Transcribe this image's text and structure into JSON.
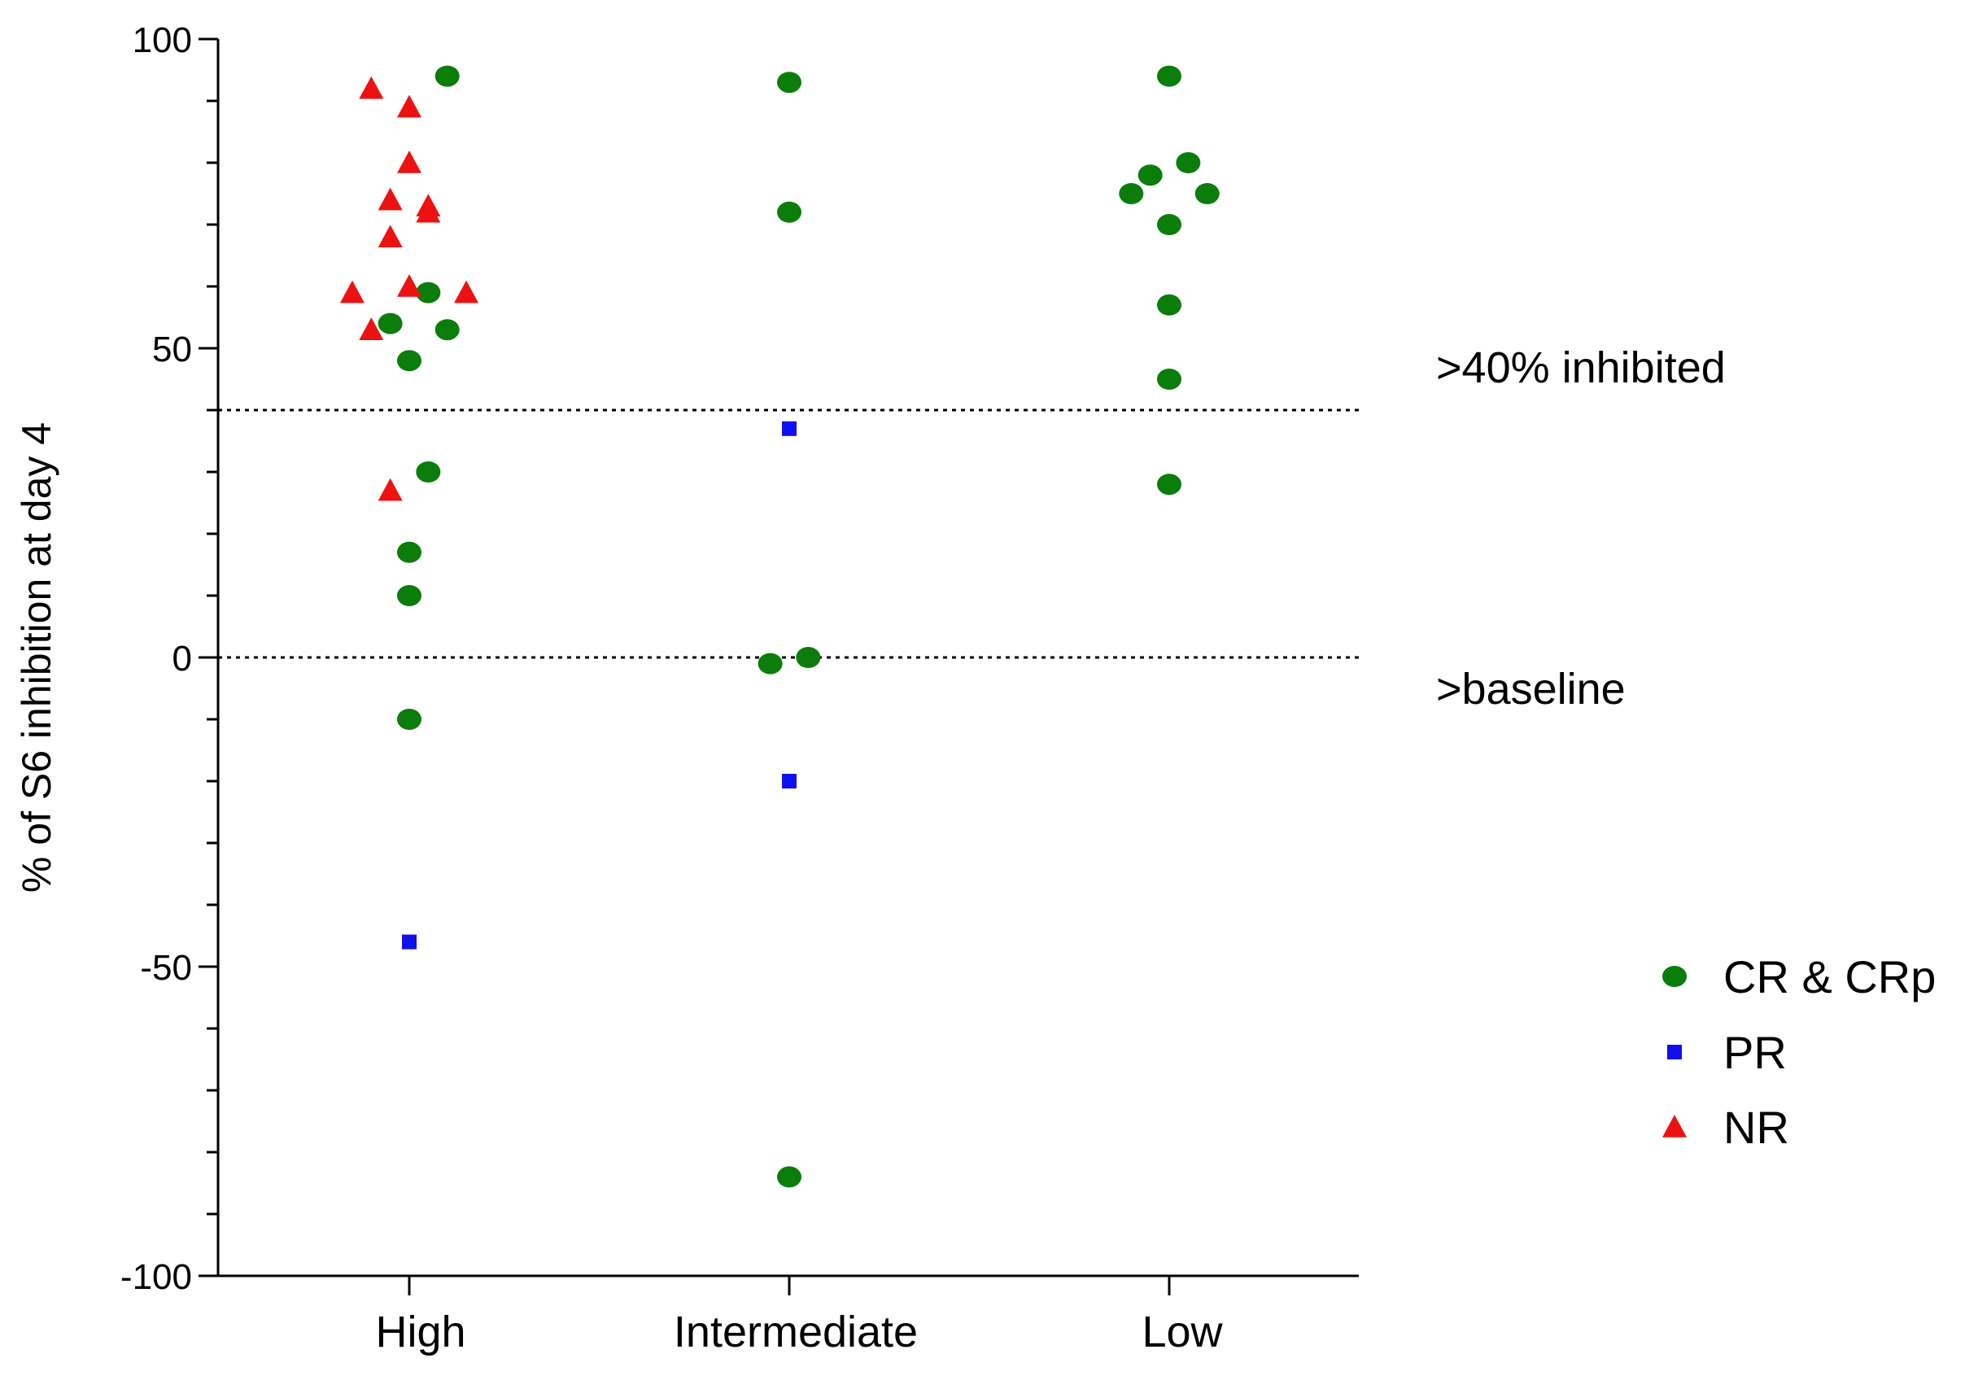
{
  "chart_data": {
    "type": "scatter",
    "title": "",
    "xlabel": "",
    "ylabel": "% of S6 inhibition at day 4",
    "ylim": [
      -100,
      100
    ],
    "yticks": [
      100,
      50,
      0,
      -50,
      -100
    ],
    "yminor_step": 10,
    "categories": [
      "High",
      "Intermediate",
      "Low"
    ],
    "grid": false,
    "legend_position": "right",
    "reference_lines": [
      {
        "y": 40,
        "label": ">40% inhibited",
        "style": "dotted"
      },
      {
        "y": 0,
        "label": ">baseline",
        "style": "dotted"
      }
    ],
    "series": [
      {
        "name": "CR & CRp",
        "marker": "circle",
        "color": "#0a7d0a",
        "points": [
          {
            "category": "High",
            "jitter": 0.1,
            "y": 94
          },
          {
            "category": "High",
            "jitter": 0.05,
            "y": 59
          },
          {
            "category": "High",
            "jitter": -0.05,
            "y": 54
          },
          {
            "category": "High",
            "jitter": 0.1,
            "y": 53
          },
          {
            "category": "High",
            "jitter": 0.0,
            "y": 48
          },
          {
            "category": "High",
            "jitter": 0.05,
            "y": 30
          },
          {
            "category": "High",
            "jitter": 0.0,
            "y": 17
          },
          {
            "category": "High",
            "jitter": 0.0,
            "y": 10
          },
          {
            "category": "High",
            "jitter": 0.0,
            "y": -10
          },
          {
            "category": "Intermediate",
            "jitter": 0.0,
            "y": 93
          },
          {
            "category": "Intermediate",
            "jitter": 0.0,
            "y": 72
          },
          {
            "category": "Intermediate",
            "jitter": -0.05,
            "y": -1
          },
          {
            "category": "Intermediate",
            "jitter": 0.05,
            "y": 0
          },
          {
            "category": "Intermediate",
            "jitter": 0.0,
            "y": -84
          },
          {
            "category": "Low",
            "jitter": 0.0,
            "y": 94
          },
          {
            "category": "Low",
            "jitter": 0.05,
            "y": 80
          },
          {
            "category": "Low",
            "jitter": -0.05,
            "y": 78
          },
          {
            "category": "Low",
            "jitter": -0.1,
            "y": 75
          },
          {
            "category": "Low",
            "jitter": 0.1,
            "y": 75
          },
          {
            "category": "Low",
            "jitter": 0.0,
            "y": 70
          },
          {
            "category": "Low",
            "jitter": 0.0,
            "y": 57
          },
          {
            "category": "Low",
            "jitter": 0.0,
            "y": 45
          },
          {
            "category": "Low",
            "jitter": 0.0,
            "y": 28
          }
        ]
      },
      {
        "name": "PR",
        "marker": "square",
        "color": "#1010ee",
        "points": [
          {
            "category": "High",
            "jitter": 0.0,
            "y": -46
          },
          {
            "category": "Intermediate",
            "jitter": 0.0,
            "y": 37
          },
          {
            "category": "Intermediate",
            "jitter": 0.0,
            "y": -20
          }
        ]
      },
      {
        "name": "NR",
        "marker": "triangle",
        "color": "#ee1111",
        "points": [
          {
            "category": "High",
            "jitter": -0.1,
            "y": 92
          },
          {
            "category": "High",
            "jitter": 0.0,
            "y": 89
          },
          {
            "category": "High",
            "jitter": 0.0,
            "y": 80
          },
          {
            "category": "High",
            "jitter": -0.05,
            "y": 74
          },
          {
            "category": "High",
            "jitter": 0.05,
            "y": 73
          },
          {
            "category": "High",
            "jitter": 0.05,
            "y": 72
          },
          {
            "category": "High",
            "jitter": -0.05,
            "y": 68
          },
          {
            "category": "High",
            "jitter": 0.0,
            "y": 60
          },
          {
            "category": "High",
            "jitter": -0.15,
            "y": 59
          },
          {
            "category": "High",
            "jitter": 0.15,
            "y": 59
          },
          {
            "category": "High",
            "jitter": -0.1,
            "y": 53
          },
          {
            "category": "High",
            "jitter": -0.05,
            "y": 27
          }
        ]
      }
    ]
  }
}
